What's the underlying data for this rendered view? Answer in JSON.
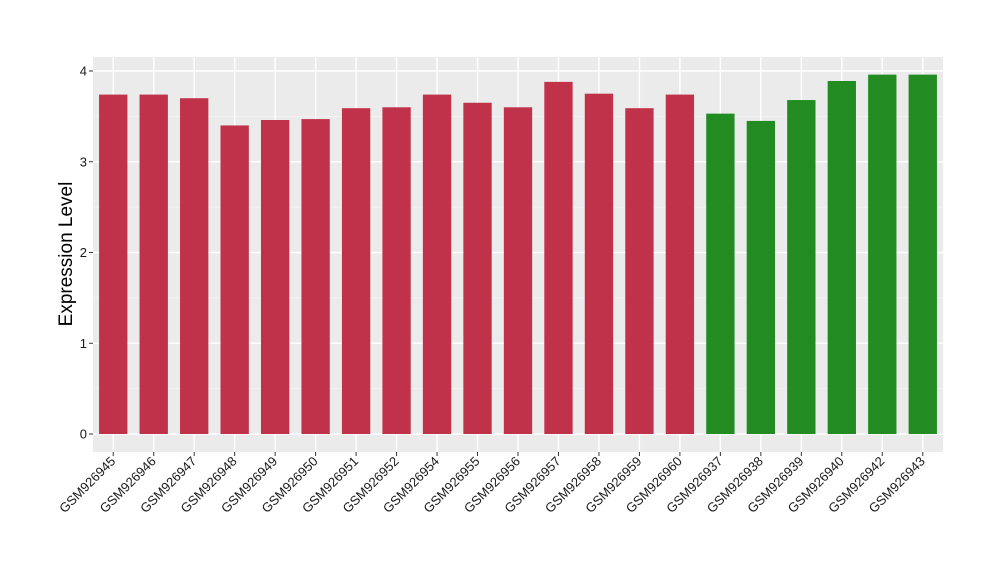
{
  "chart_data": {
    "type": "bar",
    "title": "",
    "xlabel": "",
    "ylabel": "Expression Level",
    "ylim": [
      -0.18,
      4.15
    ],
    "yticks": [
      0,
      1,
      2,
      3,
      4
    ],
    "grid": true,
    "legend": "none",
    "categories": [
      "GSM926945",
      "GSM926946",
      "GSM926947",
      "GSM926948",
      "GSM926949",
      "GSM926950",
      "GSM926951",
      "GSM926952",
      "GSM926954",
      "GSM926955",
      "GSM926956",
      "GSM926957",
      "GSM926958",
      "GSM926959",
      "GSM926960",
      "GSM926937",
      "GSM926938",
      "GSM926939",
      "GSM926940",
      "GSM926942",
      "GSM926943"
    ],
    "values": [
      3.74,
      3.74,
      3.7,
      3.4,
      3.46,
      3.47,
      3.59,
      3.6,
      3.74,
      3.65,
      3.6,
      3.88,
      3.75,
      3.59,
      3.74,
      3.53,
      3.45,
      3.68,
      3.89,
      3.96,
      3.96
    ],
    "bar_colors": [
      "#c0314a",
      "#c0314a",
      "#c0314a",
      "#c0314a",
      "#c0314a",
      "#c0314a",
      "#c0314a",
      "#c0314a",
      "#c0314a",
      "#c0314a",
      "#c0314a",
      "#c0314a",
      "#c0314a",
      "#c0314a",
      "#c0314a",
      "#228b22",
      "#228b22",
      "#228b22",
      "#228b22",
      "#228b22",
      "#228b22"
    ]
  },
  "colors": {
    "panel_background": "#ebebeb",
    "grid_major": "#ffffff",
    "grid_minor": "#f4f4f4",
    "tick_mark": "#333333"
  }
}
